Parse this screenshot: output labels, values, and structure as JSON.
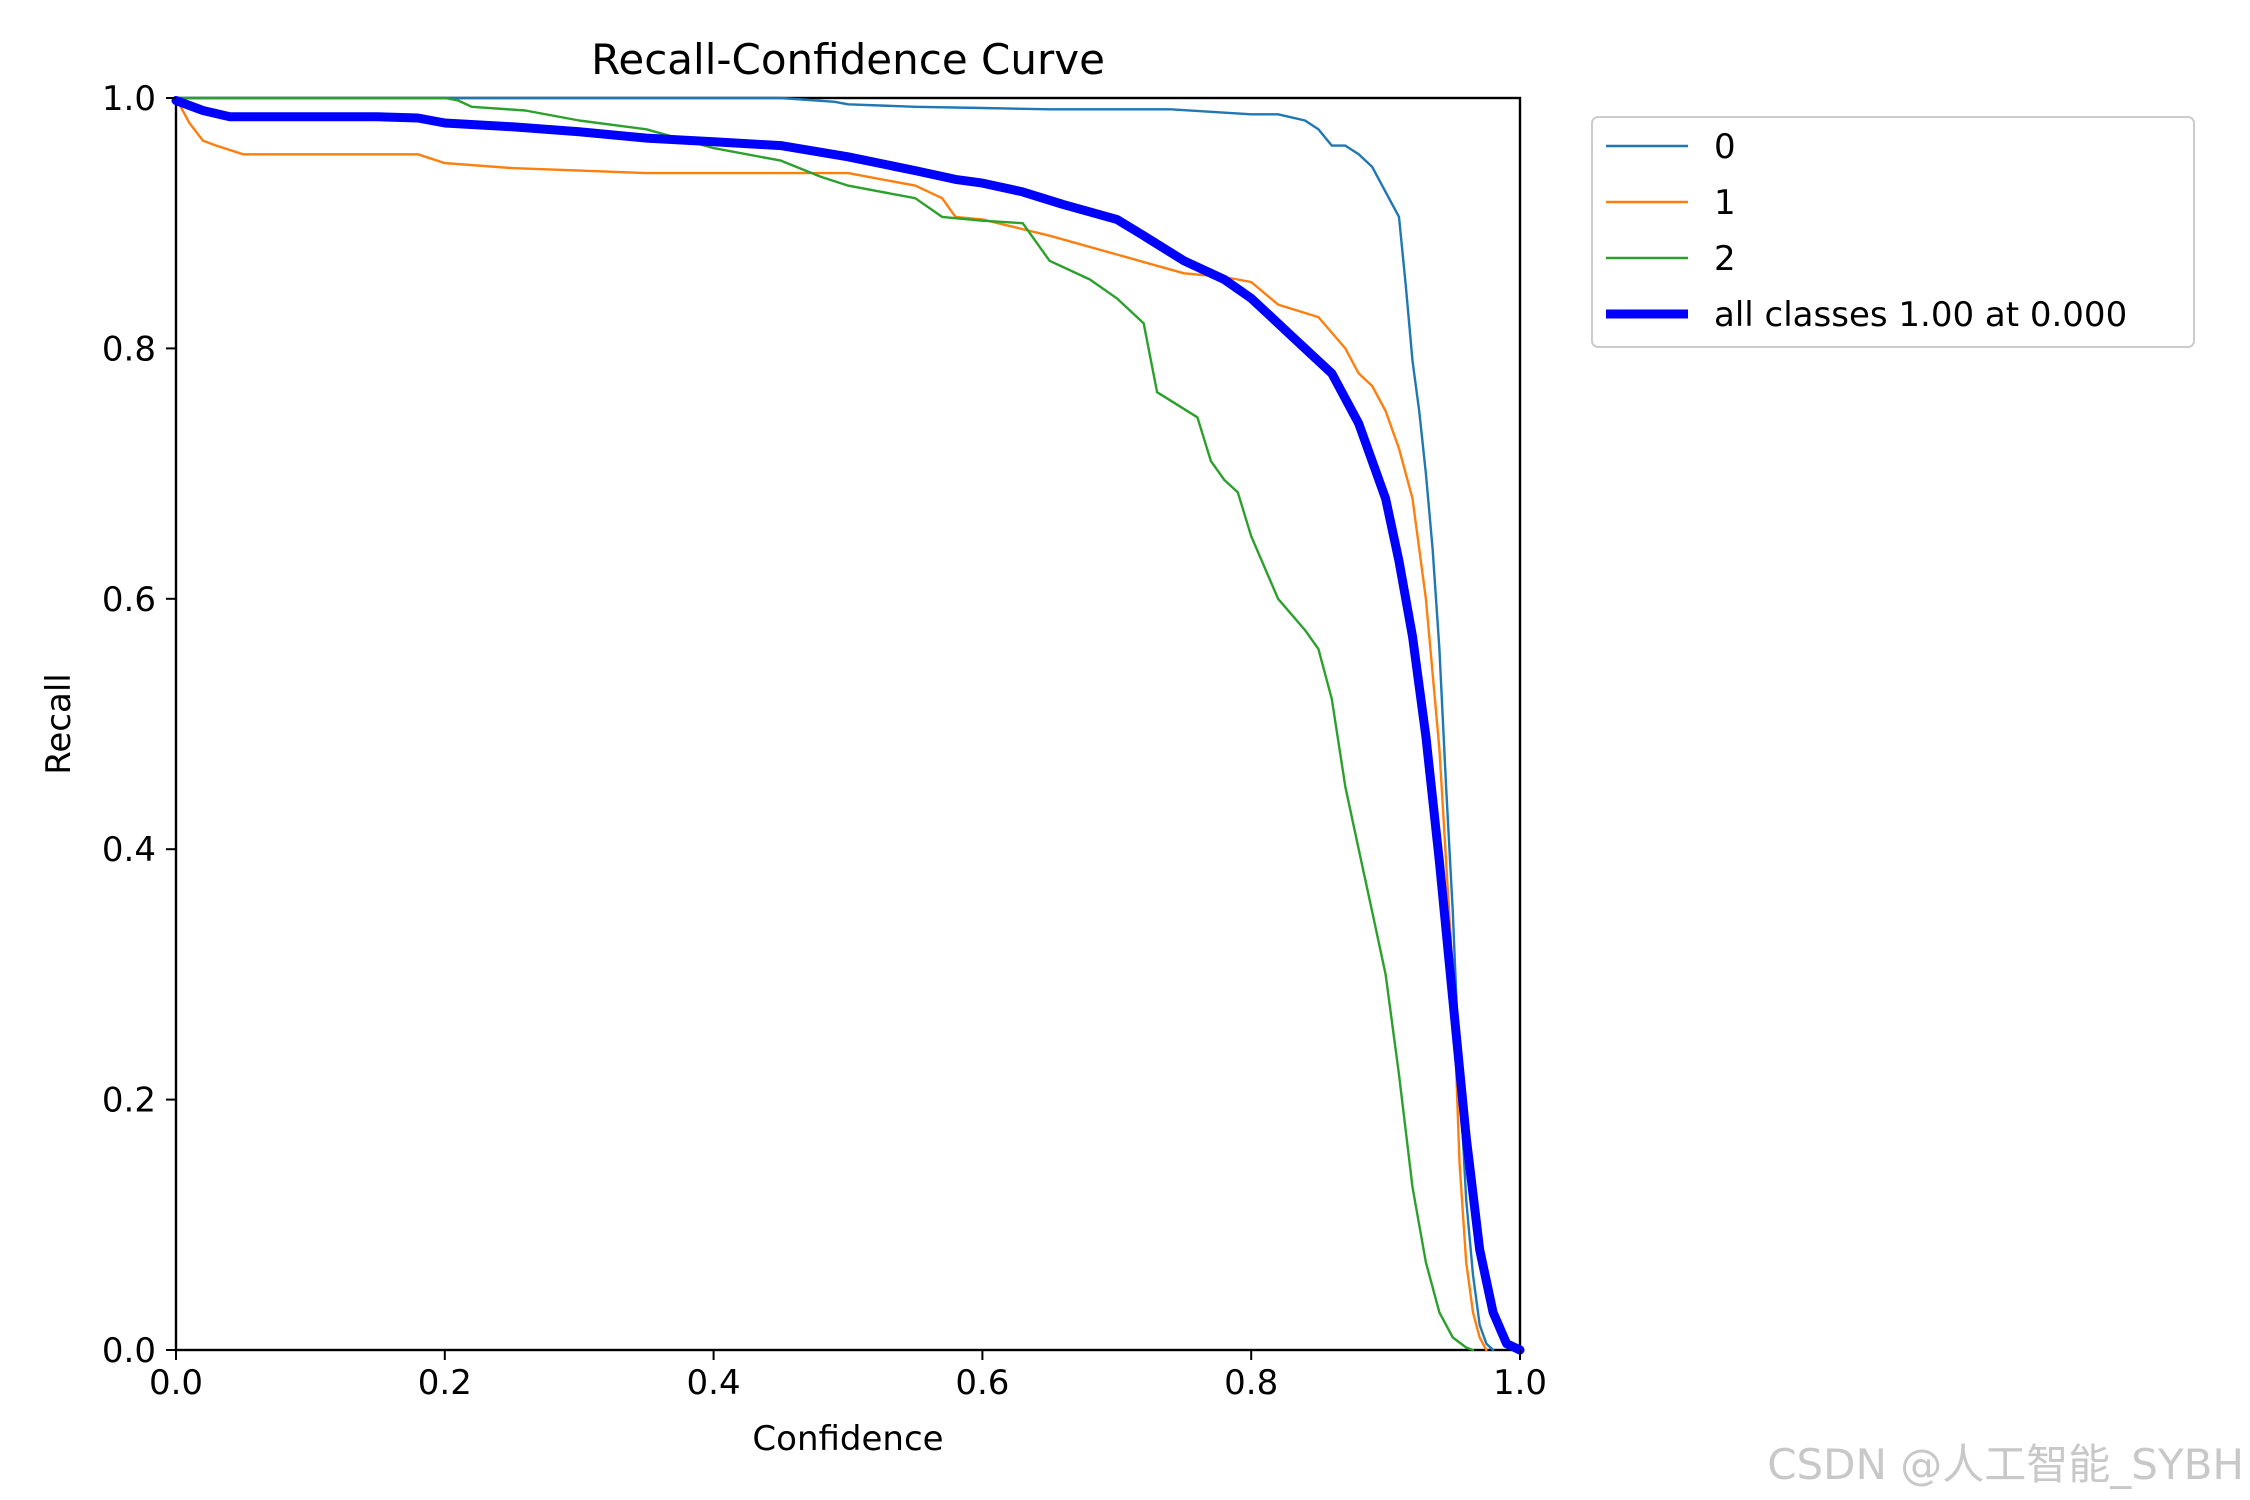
{
  "chart_data": {
    "type": "line",
    "title": "Recall-Confidence Curve",
    "xlabel": "Confidence",
    "ylabel": "Recall",
    "xlim": [
      0,
      1
    ],
    "ylim": [
      0,
      1
    ],
    "xticks": [
      "0.0",
      "0.2",
      "0.4",
      "0.6",
      "0.8",
      "1.0"
    ],
    "yticks": [
      "0.0",
      "0.2",
      "0.4",
      "0.6",
      "0.8",
      "1.0"
    ],
    "grid": false,
    "legend_position": "outside-top-right",
    "series": [
      {
        "name": "0",
        "color": "#1f77b4",
        "x": [
          0.0,
          0.05,
          0.1,
          0.2,
          0.3,
          0.4,
          0.45,
          0.49,
          0.5,
          0.55,
          0.6,
          0.65,
          0.74,
          0.8,
          0.82,
          0.84,
          0.85,
          0.86,
          0.87,
          0.88,
          0.89,
          0.9,
          0.91,
          0.915,
          0.92,
          0.925,
          0.93,
          0.935,
          0.94,
          0.945,
          0.95,
          0.955,
          0.96,
          0.965,
          0.97,
          0.975,
          0.98
        ],
        "y": [
          1.0,
          1.0,
          1.0,
          1.0,
          1.0,
          1.0,
          1.0,
          0.997,
          0.995,
          0.993,
          0.992,
          0.991,
          0.991,
          0.987,
          0.987,
          0.982,
          0.975,
          0.962,
          0.962,
          0.955,
          0.945,
          0.925,
          0.905,
          0.85,
          0.79,
          0.75,
          0.7,
          0.64,
          0.56,
          0.45,
          0.35,
          0.22,
          0.12,
          0.06,
          0.02,
          0.005,
          0.0
        ]
      },
      {
        "name": "1",
        "color": "#ff7f0e",
        "x": [
          0.0,
          0.01,
          0.02,
          0.03,
          0.05,
          0.1,
          0.18,
          0.2,
          0.25,
          0.3,
          0.35,
          0.4,
          0.45,
          0.5,
          0.55,
          0.57,
          0.58,
          0.6,
          0.65,
          0.7,
          0.75,
          0.78,
          0.8,
          0.82,
          0.85,
          0.87,
          0.88,
          0.89,
          0.9,
          0.91,
          0.92,
          0.93,
          0.94,
          0.95,
          0.955,
          0.96,
          0.965,
          0.97,
          0.975
        ],
        "y": [
          1.0,
          0.98,
          0.966,
          0.962,
          0.955,
          0.955,
          0.955,
          0.948,
          0.944,
          0.942,
          0.94,
          0.94,
          0.94,
          0.94,
          0.93,
          0.92,
          0.905,
          0.903,
          0.89,
          0.875,
          0.86,
          0.857,
          0.853,
          0.835,
          0.825,
          0.8,
          0.78,
          0.77,
          0.75,
          0.72,
          0.68,
          0.6,
          0.48,
          0.3,
          0.15,
          0.07,
          0.03,
          0.01,
          0.0
        ]
      },
      {
        "name": "2",
        "color": "#2ca02c",
        "x": [
          0.0,
          0.1,
          0.2,
          0.21,
          0.22,
          0.26,
          0.3,
          0.35,
          0.4,
          0.45,
          0.48,
          0.5,
          0.55,
          0.57,
          0.6,
          0.63,
          0.65,
          0.68,
          0.7,
          0.72,
          0.73,
          0.76,
          0.77,
          0.78,
          0.79,
          0.8,
          0.82,
          0.84,
          0.85,
          0.86,
          0.87,
          0.88,
          0.89,
          0.9,
          0.91,
          0.92,
          0.93,
          0.94,
          0.95,
          0.96,
          0.965
        ],
        "y": [
          1.0,
          1.0,
          1.0,
          0.998,
          0.993,
          0.99,
          0.982,
          0.975,
          0.96,
          0.95,
          0.937,
          0.93,
          0.92,
          0.905,
          0.902,
          0.9,
          0.87,
          0.855,
          0.84,
          0.82,
          0.765,
          0.745,
          0.71,
          0.695,
          0.685,
          0.65,
          0.6,
          0.575,
          0.56,
          0.52,
          0.45,
          0.4,
          0.35,
          0.3,
          0.22,
          0.13,
          0.07,
          0.03,
          0.01,
          0.002,
          0.0
        ]
      },
      {
        "name": "all classes 1.00 at 0.000",
        "color": "#0000ff",
        "bold": true,
        "x": [
          0.0,
          0.02,
          0.04,
          0.06,
          0.1,
          0.15,
          0.18,
          0.2,
          0.25,
          0.3,
          0.35,
          0.4,
          0.45,
          0.5,
          0.55,
          0.58,
          0.6,
          0.63,
          0.66,
          0.7,
          0.72,
          0.75,
          0.78,
          0.8,
          0.83,
          0.86,
          0.88,
          0.9,
          0.91,
          0.92,
          0.93,
          0.94,
          0.95,
          0.96,
          0.97,
          0.98,
          0.99,
          1.0
        ],
        "y": [
          0.998,
          0.99,
          0.985,
          0.985,
          0.985,
          0.985,
          0.984,
          0.98,
          0.977,
          0.973,
          0.968,
          0.965,
          0.962,
          0.953,
          0.942,
          0.935,
          0.932,
          0.925,
          0.915,
          0.903,
          0.89,
          0.87,
          0.855,
          0.84,
          0.81,
          0.78,
          0.74,
          0.68,
          0.63,
          0.57,
          0.49,
          0.39,
          0.28,
          0.17,
          0.08,
          0.03,
          0.005,
          0.0
        ]
      }
    ]
  },
  "watermark": "CSDN @人工智能_SYBH"
}
